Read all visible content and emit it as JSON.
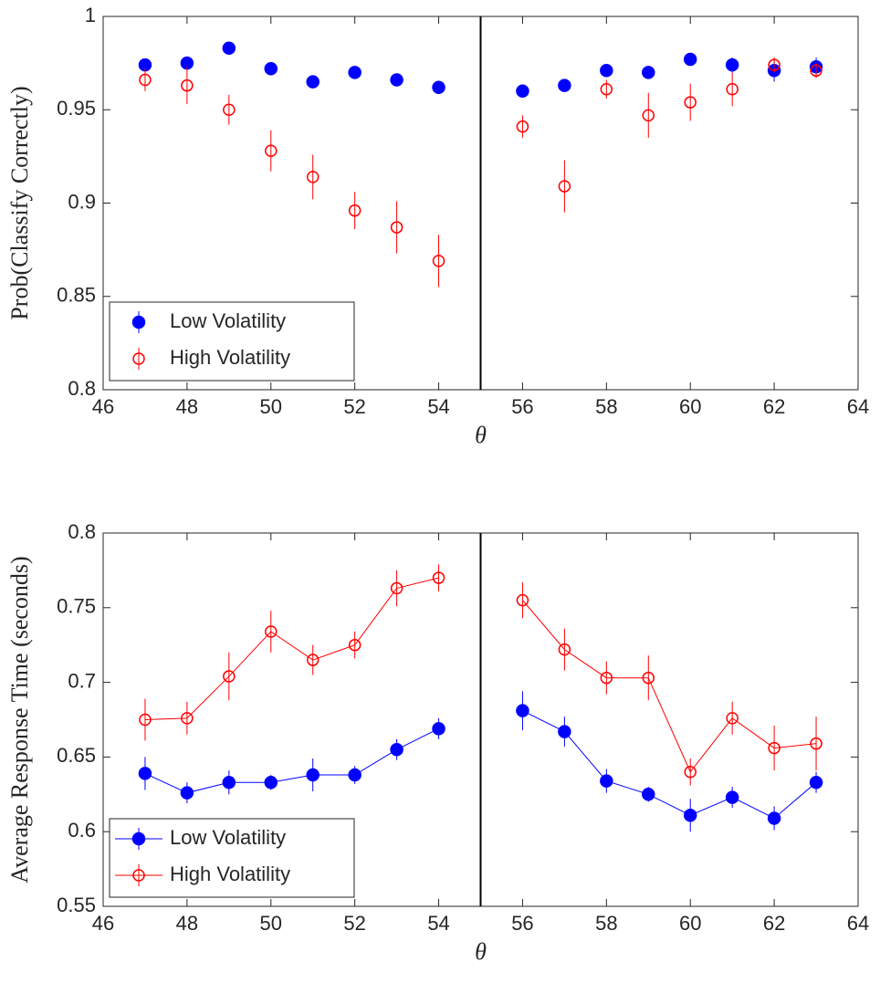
{
  "chart_data": [
    {
      "type": "scatter",
      "ylabel": "Prob(Classify Correctly)",
      "xlabel": "θ",
      "x": [
        47,
        48,
        49,
        50,
        51,
        52,
        53,
        54,
        55,
        56,
        57,
        58,
        59,
        60,
        61,
        62,
        63
      ],
      "xlim": [
        46,
        64
      ],
      "xticks": [
        46,
        48,
        50,
        52,
        54,
        56,
        58,
        60,
        62,
        64
      ],
      "ylim": [
        0.8,
        1
      ],
      "yticks": [
        0.8,
        0.85,
        0.9,
        0.95,
        1
      ],
      "vline": 55,
      "legend": "lower left",
      "lines": false,
      "series": [
        {
          "name": "Low Volatility",
          "color": "#0000ff",
          "marker": "filled",
          "values": [
            0.974,
            0.975,
            0.983,
            0.972,
            0.965,
            0.97,
            0.966,
            0.962,
            null,
            0.96,
            0.963,
            0.971,
            0.97,
            0.977,
            0.974,
            0.971,
            0.973
          ],
          "errors": [
            0.002,
            0.003,
            0.002,
            0.002,
            0.002,
            0.002,
            0.002,
            0.002,
            null,
            0.003,
            0.002,
            0.003,
            0.003,
            0.002,
            0.004,
            0.006,
            0.005
          ]
        },
        {
          "name": "High Volatility",
          "color": "#ff0000",
          "marker": "open",
          "values": [
            0.966,
            0.963,
            0.95,
            0.928,
            0.914,
            0.896,
            0.887,
            0.869,
            null,
            0.941,
            0.909,
            0.961,
            0.947,
            0.954,
            0.961,
            0.974,
            0.971
          ],
          "errors": [
            0.006,
            0.01,
            0.008,
            0.011,
            0.012,
            0.01,
            0.014,
            0.014,
            null,
            0.006,
            0.014,
            0.005,
            0.012,
            0.01,
            0.009,
            0.004,
            0.004
          ]
        }
      ]
    },
    {
      "type": "line",
      "ylabel": "Average Response Time (seconds)",
      "xlabel": "θ",
      "x": [
        47,
        48,
        49,
        50,
        51,
        52,
        53,
        54,
        55,
        56,
        57,
        58,
        59,
        60,
        61,
        62,
        63
      ],
      "xlim": [
        46,
        64
      ],
      "xticks": [
        46,
        48,
        50,
        52,
        54,
        56,
        58,
        60,
        62,
        64
      ],
      "ylim": [
        0.55,
        0.8
      ],
      "yticks": [
        0.55,
        0.6,
        0.65,
        0.7,
        0.75,
        0.8
      ],
      "vline": 55,
      "legend": "lower left",
      "lines": true,
      "series": [
        {
          "name": "Low Volatility",
          "color": "#0000ff",
          "marker": "filled",
          "values": [
            0.639,
            0.626,
            0.633,
            0.633,
            0.638,
            0.638,
            0.655,
            0.669,
            null,
            0.681,
            0.667,
            0.634,
            0.625,
            0.611,
            0.623,
            0.609,
            0.633
          ],
          "errors": [
            0.011,
            0.007,
            0.008,
            0.005,
            0.011,
            0.006,
            0.007,
            0.007,
            null,
            0.013,
            0.01,
            0.008,
            0.005,
            0.011,
            0.007,
            0.008,
            0.007
          ]
        },
        {
          "name": "High Volatility",
          "color": "#ff0000",
          "marker": "open",
          "values": [
            0.675,
            0.676,
            0.704,
            0.734,
            0.715,
            0.725,
            0.763,
            0.77,
            null,
            0.755,
            0.722,
            0.703,
            0.703,
            0.64,
            0.676,
            0.656,
            0.659
          ],
          "errors": [
            0.014,
            0.011,
            0.016,
            0.014,
            0.01,
            0.009,
            0.012,
            0.009,
            null,
            0.012,
            0.014,
            0.011,
            0.015,
            0.009,
            0.011,
            0.015,
            0.018
          ]
        }
      ]
    }
  ]
}
